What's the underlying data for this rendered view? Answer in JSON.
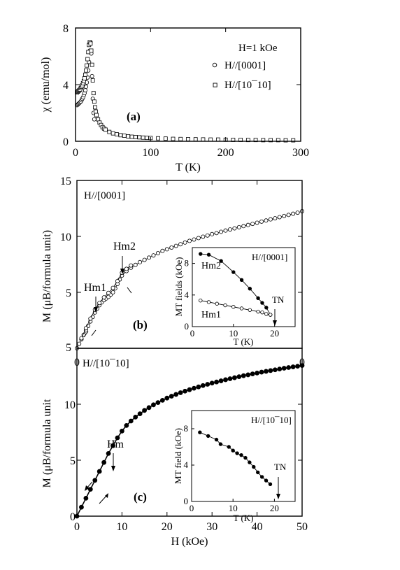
{
  "chart_data": [
    {
      "id": "a",
      "type": "scatter",
      "panel_label": "(a)",
      "xlabel": "T (K)",
      "ylabel": "χ (emu/mol)",
      "xlim": [
        0,
        300
      ],
      "ylim": [
        0,
        8
      ],
      "xticks": [
        0,
        100,
        200,
        300
      ],
      "yticks": [
        0,
        4,
        8
      ],
      "legend_title": "H=1 kOe",
      "series": [
        {
          "name": "H//[0001]",
          "marker": "circle",
          "points": [
            [
              2,
              2.55
            ],
            [
              3,
              2.6
            ],
            [
              4,
              2.65
            ],
            [
              5,
              2.7
            ],
            [
              6,
              2.75
            ],
            [
              7,
              2.8
            ],
            [
              8,
              2.9
            ],
            [
              9,
              3.0
            ],
            [
              10,
              3.1
            ],
            [
              11,
              3.25
            ],
            [
              12,
              3.4
            ],
            [
              13,
              3.6
            ],
            [
              14,
              3.85
            ],
            [
              15,
              4.15
            ],
            [
              16,
              4.5
            ],
            [
              17,
              5.0
            ],
            [
              18,
              5.6
            ],
            [
              19,
              6.4
            ],
            [
              20,
              7.0
            ],
            [
              21,
              6.2
            ],
            [
              22,
              4.6
            ],
            [
              23,
              3.0
            ],
            [
              24,
              2.0
            ],
            [
              25,
              1.55
            ]
          ]
        },
        {
          "name": "H//[10¯10]",
          "marker": "square",
          "points": [
            [
              2,
              3.45
            ],
            [
              3,
              3.5
            ],
            [
              4,
              3.55
            ],
            [
              5,
              3.6
            ],
            [
              6,
              3.65
            ],
            [
              7,
              3.75
            ],
            [
              8,
              3.85
            ],
            [
              9,
              3.95
            ],
            [
              10,
              4.1
            ],
            [
              11,
              4.25
            ],
            [
              12,
              4.45
            ],
            [
              13,
              4.7
            ],
            [
              14,
              5.0
            ],
            [
              15,
              5.35
            ],
            [
              16,
              5.8
            ],
            [
              17,
              6.3
            ],
            [
              18,
              6.8
            ],
            [
              19,
              7.0
            ],
            [
              20,
              6.9
            ],
            [
              21,
              6.4
            ],
            [
              22,
              5.4
            ],
            [
              23,
              4.3
            ],
            [
              24,
              3.4
            ],
            [
              25,
              2.8
            ],
            [
              26,
              2.4
            ],
            [
              27,
              2.1
            ],
            [
              28,
              1.85
            ],
            [
              30,
              1.55
            ],
            [
              32,
              1.32
            ],
            [
              34,
              1.15
            ],
            [
              36,
              1.0
            ],
            [
              38,
              0.9
            ],
            [
              40,
              0.82
            ],
            [
              45,
              0.66
            ],
            [
              50,
              0.56
            ],
            [
              55,
              0.49
            ],
            [
              60,
              0.43
            ],
            [
              65,
              0.39
            ],
            [
              70,
              0.35
            ],
            [
              75,
              0.32
            ],
            [
              80,
              0.3
            ],
            [
              85,
              0.28
            ],
            [
              90,
              0.26
            ],
            [
              95,
              0.24
            ],
            [
              100,
              0.23
            ],
            [
              110,
              0.21
            ],
            [
              120,
              0.19
            ],
            [
              130,
              0.17
            ],
            [
              140,
              0.16
            ],
            [
              150,
              0.15
            ],
            [
              160,
              0.14
            ],
            [
              170,
              0.13
            ],
            [
              180,
              0.12
            ],
            [
              190,
              0.12
            ],
            [
              200,
              0.11
            ],
            [
              210,
              0.1
            ],
            [
              220,
              0.1
            ],
            [
              230,
              0.09
            ],
            [
              240,
              0.09
            ],
            [
              250,
              0.08
            ],
            [
              260,
              0.08
            ],
            [
              270,
              0.08
            ],
            [
              280,
              0.07
            ],
            [
              290,
              0.07
            ]
          ]
        }
      ]
    },
    {
      "id": "b",
      "type": "scatter",
      "panel_label": "(b)",
      "header": "H//[0001]",
      "ylabel": "M (μB/formula unit)",
      "xlim": [
        0,
        50
      ],
      "ylim": [
        0,
        15
      ],
      "xtick_labels": [
        "0",
        "0"
      ],
      "yticks": [
        5,
        10,
        15
      ],
      "ytick_bottom_label": "5",
      "annotations": [
        "Hm2",
        "Hm1"
      ],
      "series": [
        {
          "name": "M up",
          "marker": "circle",
          "points": [
            [
              0,
              0
            ],
            [
              0.5,
              0.4
            ],
            [
              1,
              0.8
            ],
            [
              1.5,
              1.2
            ],
            [
              2,
              1.6
            ],
            [
              2.5,
              2.0
            ],
            [
              3,
              2.4
            ],
            [
              3.5,
              2.8
            ],
            [
              4,
              3.2
            ],
            [
              4.5,
              3.55
            ],
            [
              5,
              3.85
            ],
            [
              5.5,
              4.1
            ],
            [
              6,
              4.3
            ],
            [
              6.5,
              4.45
            ],
            [
              7,
              4.6
            ],
            [
              7.5,
              4.8
            ],
            [
              8,
              5.0
            ],
            [
              8.5,
              5.35
            ],
            [
              9,
              5.75
            ],
            [
              9.5,
              6.15
            ],
            [
              10,
              6.5
            ],
            [
              11,
              6.9
            ],
            [
              12,
              7.2
            ],
            [
              13,
              7.45
            ],
            [
              14,
              7.7
            ],
            [
              15,
              7.9
            ],
            [
              16,
              8.1
            ],
            [
              17,
              8.3
            ],
            [
              18,
              8.5
            ],
            [
              19,
              8.7
            ],
            [
              20,
              8.85
            ],
            [
              21,
              9.0
            ],
            [
              22,
              9.15
            ],
            [
              23,
              9.3
            ],
            [
              24,
              9.45
            ],
            [
              25,
              9.6
            ],
            [
              26,
              9.72
            ],
            [
              27,
              9.85
            ],
            [
              28,
              9.97
            ],
            [
              29,
              10.08
            ],
            [
              30,
              10.2
            ],
            [
              31,
              10.3
            ],
            [
              32,
              10.41
            ],
            [
              33,
              10.52
            ],
            [
              34,
              10.62
            ],
            [
              35,
              10.72
            ],
            [
              36,
              10.82
            ],
            [
              37,
              10.92
            ],
            [
              38,
              11.02
            ],
            [
              39,
              11.12
            ],
            [
              40,
              11.22
            ],
            [
              41,
              11.32
            ],
            [
              42,
              11.42
            ],
            [
              43,
              11.52
            ],
            [
              44,
              11.62
            ],
            [
              45,
              11.72
            ],
            [
              46,
              11.82
            ],
            [
              47,
              11.92
            ],
            [
              48,
              12.02
            ],
            [
              49,
              12.12
            ],
            [
              50,
              12.25
            ]
          ]
        },
        {
          "name": "M down",
          "marker": "circle",
          "points": [
            [
              1,
              0.9
            ],
            [
              2,
              1.8
            ],
            [
              3,
              2.65
            ],
            [
              4,
              3.45
            ],
            [
              5,
              4.05
            ],
            [
              6,
              4.55
            ],
            [
              7,
              4.95
            ],
            [
              8,
              5.4
            ],
            [
              9,
              6.0
            ],
            [
              10,
              6.75
            ],
            [
              11,
              7.1
            ],
            [
              12,
              7.4
            ]
          ]
        }
      ],
      "inset": {
        "header": "H//[0001]",
        "xlabel": "T (K)",
        "ylabel": "MT fields (kOe)",
        "xlim": [
          0,
          25
        ],
        "ylim": [
          0,
          10
        ],
        "xticks": [
          0,
          10,
          20
        ],
        "yticks": [
          0,
          4,
          8
        ],
        "labels": [
          "Hm2",
          "Hm1",
          "TN"
        ],
        "series": [
          {
            "name": "Hm2",
            "marker": "filled-circle",
            "points": [
              [
                2,
                9.2
              ],
              [
                4,
                9.1
              ],
              [
                7,
                8.3
              ],
              [
                10,
                6.9
              ],
              [
                12,
                5.9
              ],
              [
                14,
                4.8
              ],
              [
                16,
                3.6
              ],
              [
                17,
                3.0
              ],
              [
                18,
                2.4
              ],
              [
                19,
                1.5
              ]
            ]
          },
          {
            "name": "Hm1",
            "marker": "open-circle",
            "points": [
              [
                2,
                3.3
              ],
              [
                4,
                3.1
              ],
              [
                6,
                2.9
              ],
              [
                8,
                2.7
              ],
              [
                10,
                2.5
              ],
              [
                12,
                2.3
              ],
              [
                14,
                2.1
              ],
              [
                16,
                1.9
              ],
              [
                17,
                1.8
              ],
              [
                18,
                1.6
              ],
              [
                19,
                1.5
              ]
            ]
          }
        ]
      }
    },
    {
      "id": "c",
      "type": "scatter",
      "panel_label": "(c)",
      "header": "H//[10¯10]",
      "xlabel": "H (kOe)",
      "ylabel": "M (μB/formula unit",
      "xlim": [
        0,
        50
      ],
      "ylim": [
        0,
        15
      ],
      "xticks": [
        0,
        10,
        20,
        30,
        40,
        50
      ],
      "ytick_labels": [
        "0",
        "5",
        "10"
      ],
      "annotations": [
        "Hm"
      ],
      "series": [
        {
          "name": "M",
          "marker": "filled-circle",
          "points": [
            [
              0,
              0
            ],
            [
              1,
              0.8
            ],
            [
              2,
              1.6
            ],
            [
              3,
              2.4
            ],
            [
              4,
              3.2
            ],
            [
              5,
              4.0
            ],
            [
              6,
              4.8
            ],
            [
              7,
              5.6
            ],
            [
              8,
              6.3
            ],
            [
              9,
              7.0
            ],
            [
              10,
              7.6
            ],
            [
              11,
              8.1
            ],
            [
              12,
              8.5
            ],
            [
              13,
              8.85
            ],
            [
              14,
              9.15
            ],
            [
              15,
              9.45
            ],
            [
              16,
              9.7
            ],
            [
              17,
              9.95
            ],
            [
              18,
              10.15
            ],
            [
              19,
              10.35
            ],
            [
              20,
              10.55
            ],
            [
              21,
              10.72
            ],
            [
              22,
              10.88
            ],
            [
              23,
              11.03
            ],
            [
              24,
              11.17
            ],
            [
              25,
              11.3
            ],
            [
              26,
              11.43
            ],
            [
              27,
              11.55
            ],
            [
              28,
              11.67
            ],
            [
              29,
              11.78
            ],
            [
              30,
              11.89
            ],
            [
              31,
              11.99
            ],
            [
              32,
              12.09
            ],
            [
              33,
              12.19
            ],
            [
              34,
              12.28
            ],
            [
              35,
              12.37
            ],
            [
              36,
              12.46
            ],
            [
              37,
              12.55
            ],
            [
              38,
              12.63
            ],
            [
              39,
              12.71
            ],
            [
              40,
              12.79
            ],
            [
              41,
              12.87
            ],
            [
              42,
              12.94
            ],
            [
              43,
              13.01
            ],
            [
              44,
              13.08
            ],
            [
              45,
              13.15
            ],
            [
              46,
              13.22
            ],
            [
              47,
              13.28
            ],
            [
              48,
              13.34
            ],
            [
              49,
              13.4
            ],
            [
              50,
              13.46
            ]
          ]
        }
      ],
      "inset": {
        "header": "H//[10¯10]",
        "xlabel": "T (K)",
        "ylabel": "MT field (kOe)",
        "xlim": [
          0,
          25
        ],
        "ylim": [
          0,
          10
        ],
        "xticks": [
          0,
          10,
          20
        ],
        "yticks": [
          0,
          4,
          8
        ],
        "labels": [
          "TN"
        ],
        "series": [
          {
            "name": "Hm",
            "marker": "filled-circle",
            "points": [
              [
                2,
                7.6
              ],
              [
                4,
                7.2
              ],
              [
                6,
                6.8
              ],
              [
                7,
                6.3
              ],
              [
                9,
                6.0
              ],
              [
                10,
                5.6
              ],
              [
                11,
                5.3
              ],
              [
                12,
                5.1
              ],
              [
                13,
                4.8
              ],
              [
                14,
                4.3
              ],
              [
                15,
                3.8
              ],
              [
                16,
                3.2
              ],
              [
                17,
                2.7
              ],
              [
                18,
                2.3
              ],
              [
                19,
                1.9
              ]
            ]
          }
        ]
      }
    }
  ]
}
